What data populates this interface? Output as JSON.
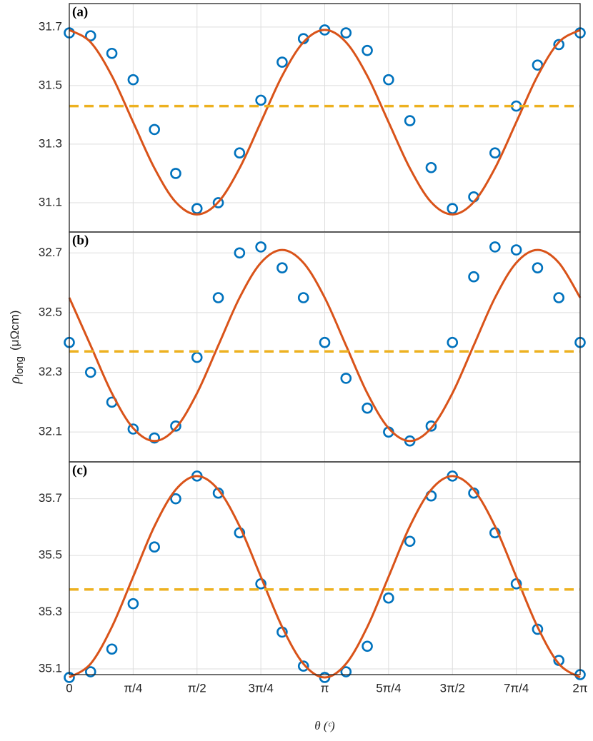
{
  "chart_data": [
    {
      "type": "scatter",
      "panel_label": "(a)",
      "x": [
        0,
        0.2618,
        0.5236,
        0.7854,
        1.0472,
        1.309,
        1.5708,
        1.8326,
        2.0944,
        2.3562,
        2.618,
        2.8798,
        3.1416,
        3.4034,
        3.6652,
        3.927,
        4.1888,
        4.4506,
        4.7124,
        4.9742,
        5.236,
        5.4978,
        5.7596,
        6.0214,
        6.2832
      ],
      "series": [
        {
          "mode": "markers",
          "color": "#0072bd",
          "values": [
            31.68,
            31.67,
            31.61,
            31.52,
            31.35,
            31.2,
            31.08,
            31.1,
            31.27,
            31.45,
            31.58,
            31.66,
            31.69,
            31.68,
            31.62,
            31.52,
            31.38,
            31.22,
            31.08,
            31.12,
            31.27,
            31.43,
            31.57,
            31.64,
            31.68
          ]
        },
        {
          "mode": "line",
          "color": "#d95319",
          "values": [
            31.69,
            31.648,
            31.533,
            31.375,
            31.218,
            31.102,
            31.06,
            31.102,
            31.218,
            31.375,
            31.533,
            31.648,
            31.69,
            31.648,
            31.533,
            31.375,
            31.218,
            31.102,
            31.06,
            31.102,
            31.218,
            31.375,
            31.533,
            31.648,
            31.69
          ]
        }
      ],
      "mean": {
        "value": 31.43,
        "color": "#edb120",
        "style": "dashed"
      },
      "xlim": [
        0,
        6.2832
      ],
      "xticks": [
        0,
        0.7854,
        1.5708,
        2.3562,
        3.1416,
        3.927,
        4.7124,
        5.4978,
        6.2832
      ],
      "ylim": [
        31.0,
        31.78
      ],
      "yticks": [
        31.1,
        31.3,
        31.5,
        31.7
      ],
      "grid": true
    },
    {
      "type": "scatter",
      "panel_label": "(b)",
      "ylabel": {
        "symbol": "ρ",
        "subscript": "long",
        "unit": "(μΩcm)"
      },
      "x": [
        0,
        0.2618,
        0.5236,
        0.7854,
        1.0472,
        1.309,
        1.5708,
        1.8326,
        2.0944,
        2.3562,
        2.618,
        2.8798,
        3.1416,
        3.4034,
        3.6652,
        3.927,
        4.1888,
        4.4506,
        4.7124,
        4.9742,
        5.236,
        5.4978,
        5.7596,
        6.0214,
        6.2832
      ],
      "series": [
        {
          "mode": "markers",
          "color": "#0072bd",
          "values": [
            32.4,
            32.3,
            32.2,
            32.11,
            32.08,
            32.12,
            32.35,
            32.55,
            32.7,
            32.72,
            32.65,
            32.55,
            32.4,
            32.28,
            32.18,
            32.1,
            32.07,
            32.12,
            32.4,
            32.62,
            32.72,
            32.71,
            32.65,
            32.55,
            32.4
          ]
        },
        {
          "mode": "line",
          "color": "#d95319",
          "values": [
            32.55,
            32.39,
            32.23,
            32.113,
            32.07,
            32.113,
            32.23,
            32.39,
            32.55,
            32.667,
            32.71,
            32.667,
            32.55,
            32.39,
            32.23,
            32.113,
            32.07,
            32.113,
            32.23,
            32.39,
            32.55,
            32.667,
            32.71,
            32.667,
            32.55
          ]
        }
      ],
      "mean": {
        "value": 32.37,
        "color": "#edb120",
        "style": "dashed"
      },
      "xlim": [
        0,
        6.2832
      ],
      "xticks": [
        0,
        0.7854,
        1.5708,
        2.3562,
        3.1416,
        3.927,
        4.7124,
        5.4978,
        6.2832
      ],
      "ylim": [
        32.0,
        32.77
      ],
      "yticks": [
        32.1,
        32.3,
        32.5,
        32.7
      ],
      "grid": true
    },
    {
      "type": "scatter",
      "panel_label": "(c)",
      "xlabel": "θ (ᶜ)",
      "x": [
        0,
        0.2618,
        0.5236,
        0.7854,
        1.0472,
        1.309,
        1.5708,
        1.8326,
        2.0944,
        2.3562,
        2.618,
        2.8798,
        3.1416,
        3.4034,
        3.6652,
        3.927,
        4.1888,
        4.4506,
        4.7124,
        4.9742,
        5.236,
        5.4978,
        5.7596,
        6.0214,
        6.2832
      ],
      "series": [
        {
          "mode": "markers",
          "color": "#0072bd",
          "values": [
            35.07,
            35.09,
            35.17,
            35.33,
            35.53,
            35.7,
            35.78,
            35.72,
            35.58,
            35.4,
            35.23,
            35.11,
            35.07,
            35.09,
            35.18,
            35.35,
            35.55,
            35.71,
            35.78,
            35.72,
            35.58,
            35.4,
            35.24,
            35.13,
            35.08
          ]
        },
        {
          "mode": "line",
          "color": "#d95319",
          "values": [
            35.07,
            35.118,
            35.248,
            35.425,
            35.603,
            35.732,
            35.78,
            35.732,
            35.603,
            35.425,
            35.248,
            35.118,
            35.07,
            35.118,
            35.248,
            35.425,
            35.603,
            35.732,
            35.78,
            35.732,
            35.603,
            35.425,
            35.248,
            35.118,
            35.07
          ]
        }
      ],
      "mean": {
        "value": 35.38,
        "color": "#edb120",
        "style": "dashed"
      },
      "xlim": [
        0,
        6.2832
      ],
      "xticks": [
        0,
        {
          "value": 0.7854,
          "label": "π/4"
        },
        {
          "value": 1.5708,
          "label": "π/2"
        },
        {
          "value": 2.3562,
          "label": "3π/4"
        },
        {
          "value": 3.1416,
          "label": "π"
        },
        {
          "value": 3.927,
          "label": "5π/4"
        },
        {
          "value": 4.7124,
          "label": "3π/2"
        },
        {
          "value": 5.4978,
          "label": "7π/4"
        },
        {
          "value": 6.2832,
          "label": "2π"
        }
      ],
      "ylim": [
        35.08,
        35.83
      ],
      "yticks": [
        35.1,
        35.3,
        35.5,
        35.7
      ],
      "grid": true
    }
  ]
}
